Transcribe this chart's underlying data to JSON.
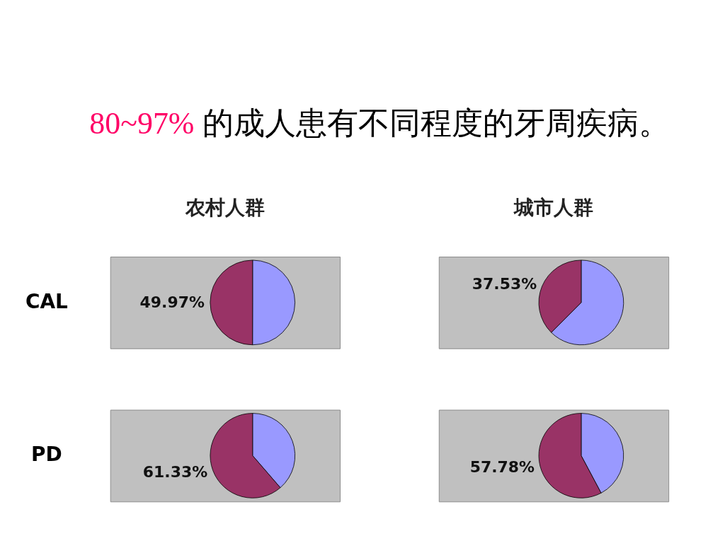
{
  "chart_data": [
    {
      "type": "other",
      "annotations": [
        "80~97%",
        "的成人患有不同程度的牙周疾病。"
      ]
    },
    {
      "type": "pie",
      "title": "农村人群",
      "ylabel": "CAL",
      "categories": [
        null,
        null
      ],
      "values": [
        50.03,
        49.97
      ],
      "colors": [
        "#9999ff",
        "#993366"
      ],
      "value_labels": [
        null,
        "49.97%"
      ]
    },
    {
      "type": "pie",
      "title": "城市人群",
      "categories": [
        null,
        null
      ],
      "values": [
        62.47,
        37.53
      ],
      "colors": [
        "#9999ff",
        "#993366"
      ],
      "value_labels": [
        null,
        "37.53%"
      ]
    },
    {
      "type": "pie",
      "ylabel": "PD",
      "categories": [
        null,
        null
      ],
      "values": [
        38.67,
        61.33
      ],
      "colors": [
        "#9999ff",
        "#993366"
      ],
      "value_labels": [
        null,
        "61.33%"
      ]
    },
    {
      "type": "pie",
      "categories": [
        null,
        null
      ],
      "values": [
        42.22,
        57.78
      ],
      "colors": [
        "#9999ff",
        "#993366"
      ],
      "value_labels": [
        null,
        "57.78%"
      ]
    }
  ]
}
